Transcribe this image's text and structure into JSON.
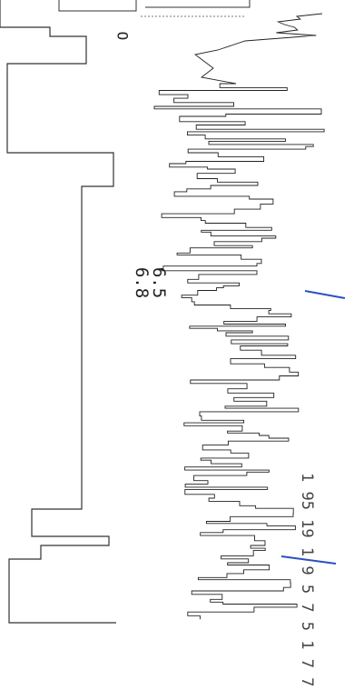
{
  "upper_trace_label": "6.8",
  "lower_trace_label": "6.5",
  "zero_marker": "O",
  "side_caption": "1 95    19 1  9 5  7 5  1 7 7",
  "colors": {
    "ink": "#333333",
    "annotation": "#2a52be"
  }
}
